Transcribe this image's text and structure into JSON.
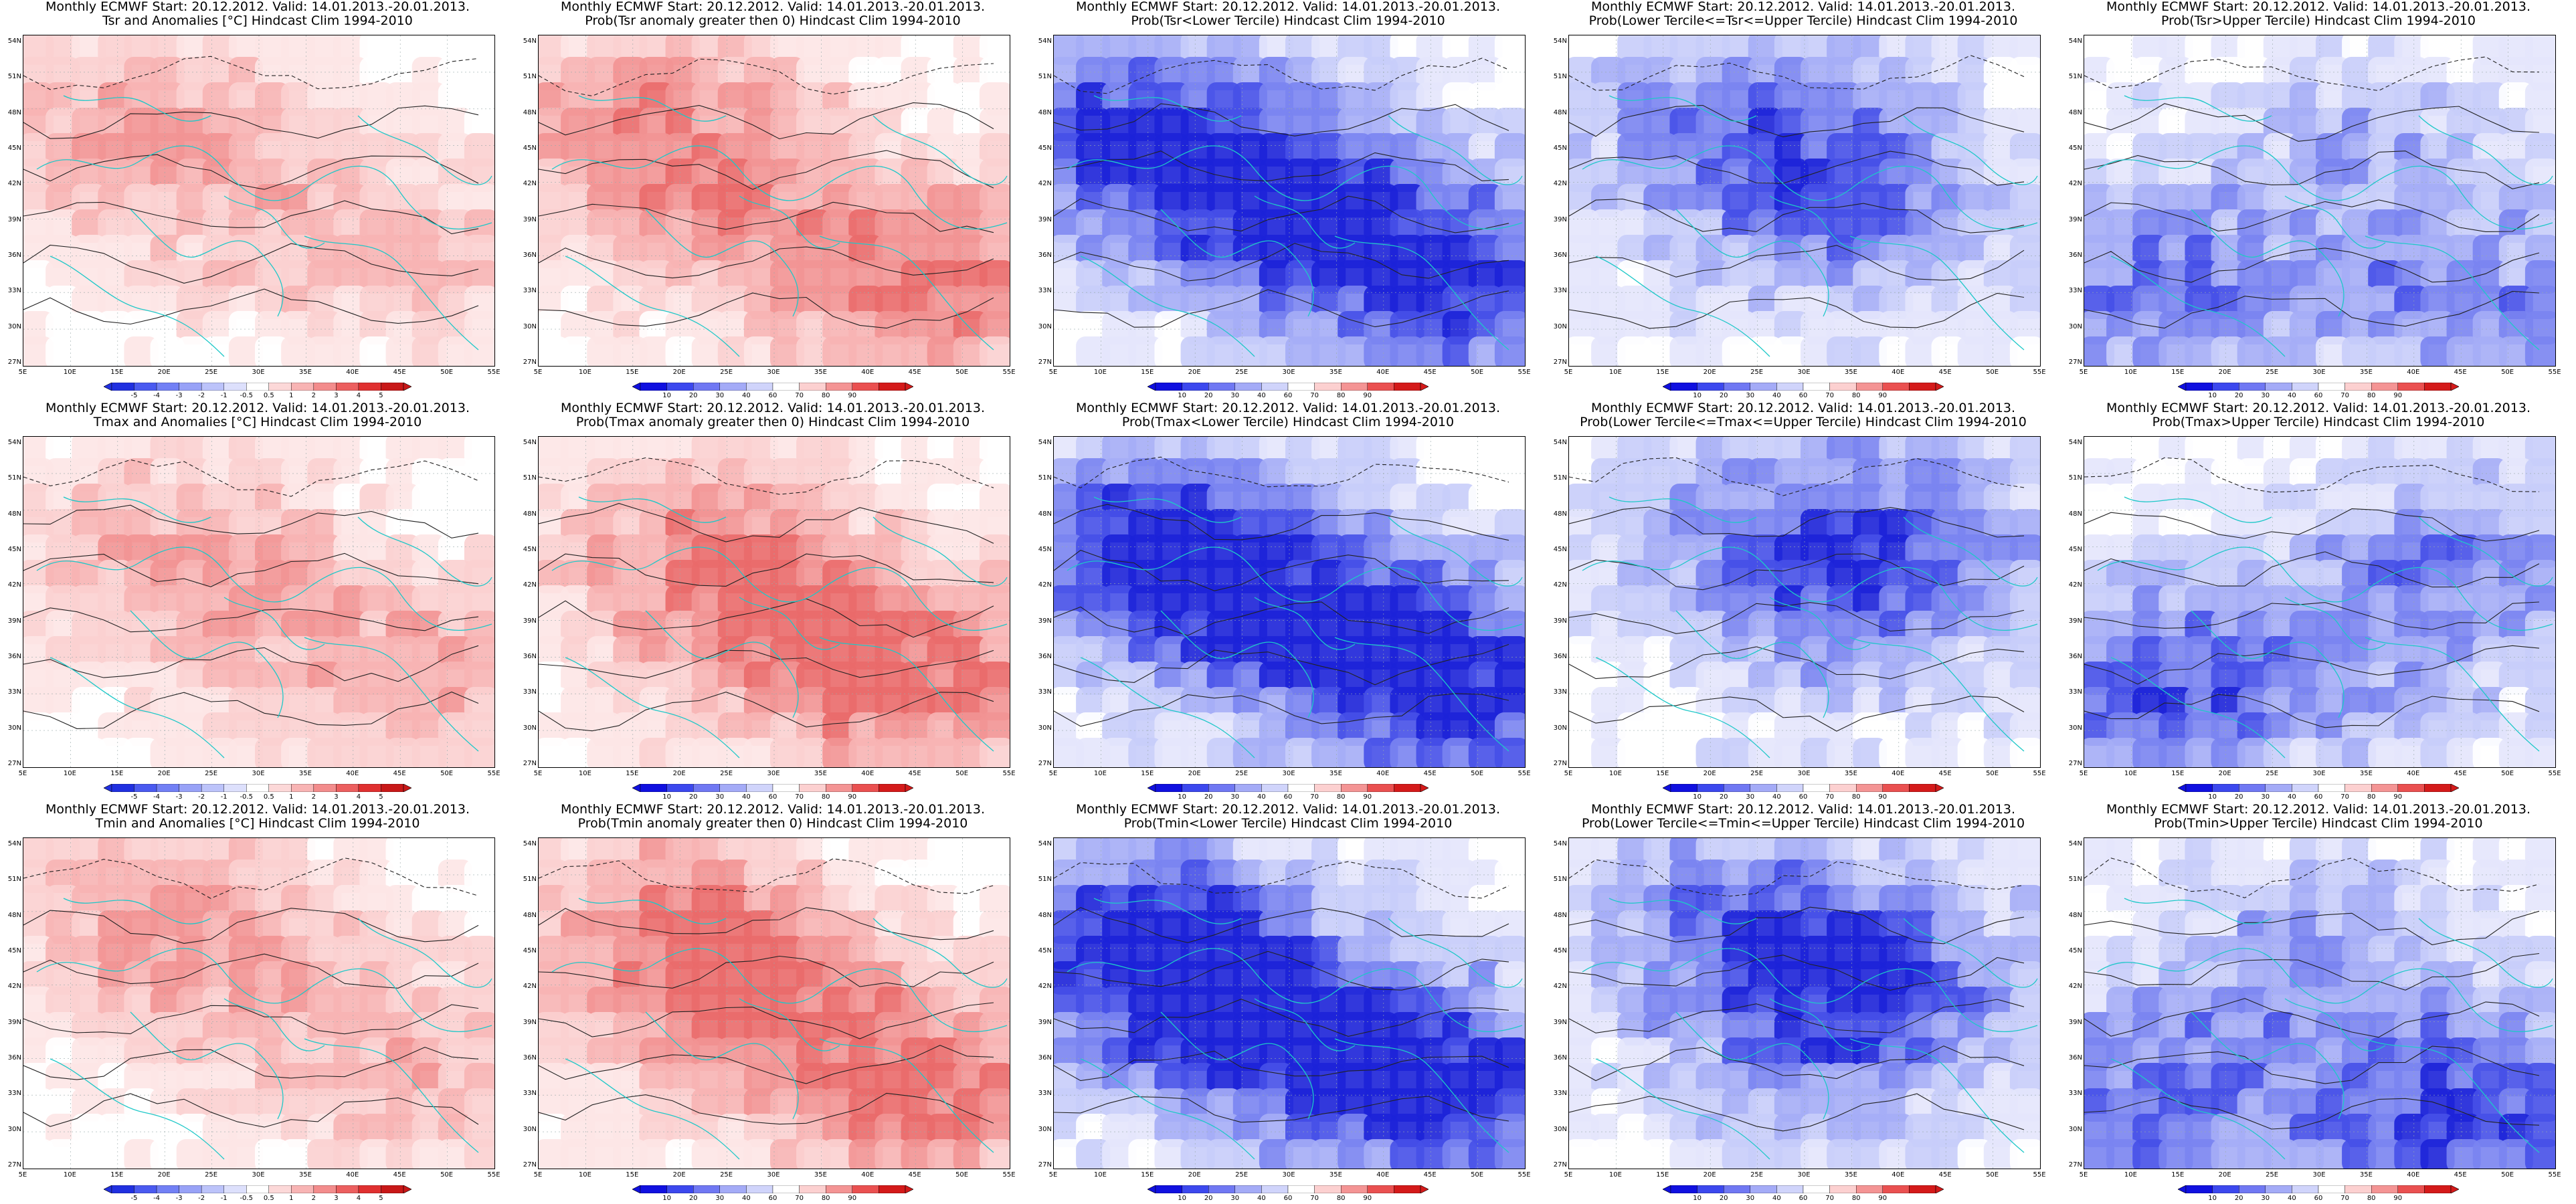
{
  "panels": [
    {
      "title1": "Monthly ECMWF Start: 20.12.2012. Valid: 14.01.2013.-20.01.2013.",
      "title2": "Tsr and Anomalies [°C] Hindcast Clim 1994-2010",
      "kind": "anom",
      "tone": "warm",
      "blobs": [
        [
          0.15,
          0.25,
          0.55
        ],
        [
          0.45,
          0.45,
          0.35
        ],
        [
          0.85,
          0.7,
          0.45
        ]
      ]
    },
    {
      "title1": "Monthly ECMWF Start: 20.12.2012. Valid: 14.01.2013.-20.01.2013.",
      "title2": "Prob(Tsr anomaly greater then 0) Hindcast Clim 1994-2010",
      "kind": "prob",
      "tone": "warm",
      "blobs": [
        [
          0.2,
          0.25,
          0.7
        ],
        [
          0.45,
          0.55,
          0.5
        ],
        [
          0.9,
          0.8,
          0.85
        ]
      ]
    },
    {
      "title1": "Monthly ECMWF Start: 20.12.2012. Valid: 14.01.2013.-20.01.2013.",
      "title2": "Prob(Tsr<Lower Tercile) Hindcast Clim 1994-2010",
      "kind": "prob",
      "tone": "cold",
      "blobs": [
        [
          0.15,
          0.3,
          0.85
        ],
        [
          0.5,
          0.5,
          0.7
        ],
        [
          0.9,
          0.8,
          0.9
        ]
      ]
    },
    {
      "title1": "Monthly ECMWF Start: 20.12.2012. Valid: 14.01.2013.-20.01.2013.",
      "title2": "Prob(Lower Tercile<=Tsr<=Upper Tercile) Hindcast Clim 1994-2010",
      "kind": "prob",
      "tone": "cold",
      "blobs": [
        [
          0.3,
          0.35,
          0.45
        ],
        [
          0.7,
          0.6,
          0.5
        ],
        [
          0.5,
          0.2,
          0.35
        ]
      ]
    },
    {
      "title1": "Monthly ECMWF Start: 20.12.2012. Valid: 14.01.2013.-20.01.2013.",
      "title2": "Prob(Tsr>Upper Tercile) Hindcast Clim 1994-2010",
      "kind": "prob",
      "tone": "cold",
      "blobs": [
        [
          0.1,
          0.8,
          0.7
        ],
        [
          0.85,
          0.85,
          0.6
        ],
        [
          0.6,
          0.3,
          0.4
        ]
      ]
    },
    {
      "title1": "Monthly ECMWF Start: 20.12.2012. Valid: 14.01.2013.-20.01.2013.",
      "title2": "Tmax and Anomalies [°C] Hindcast Clim 1994-2010",
      "kind": "anom",
      "tone": "warm",
      "blobs": [
        [
          0.25,
          0.3,
          0.5
        ],
        [
          0.5,
          0.55,
          0.35
        ],
        [
          0.9,
          0.8,
          0.6
        ]
      ]
    },
    {
      "title1": "Monthly ECMWF Start: 20.12.2012. Valid: 14.01.2013.-20.01.2013.",
      "title2": "Prob(Tmax anomaly greater then 0) Hindcast Clim 1994-2010",
      "kind": "prob",
      "tone": "warm",
      "blobs": [
        [
          0.3,
          0.3,
          0.55
        ],
        [
          0.5,
          0.6,
          0.65
        ],
        [
          0.9,
          0.8,
          0.8
        ]
      ]
    },
    {
      "title1": "Monthly ECMWF Start: 20.12.2012. Valid: 14.01.2013.-20.01.2013.",
      "title2": "Prob(Tmax<Lower Tercile) Hindcast Clim 1994-2010",
      "kind": "prob",
      "tone": "cold",
      "blobs": [
        [
          0.15,
          0.3,
          0.85
        ],
        [
          0.5,
          0.55,
          0.75
        ],
        [
          0.9,
          0.8,
          0.95
        ]
      ]
    },
    {
      "title1": "Monthly ECMWF Start: 20.12.2012. Valid: 14.01.2013.-20.01.2013.",
      "title2": "Prob(Lower Tercile<=Tmax<=Upper Tercile) Hindcast Clim 1994-2010",
      "kind": "prob",
      "tone": "cold",
      "blobs": [
        [
          0.4,
          0.25,
          0.5
        ],
        [
          0.6,
          0.6,
          0.4
        ],
        [
          0.8,
          0.3,
          0.45
        ]
      ]
    },
    {
      "title1": "Monthly ECMWF Start: 20.12.2012. Valid: 14.01.2013.-20.01.2013.",
      "title2": "Prob(Tmax>Upper Tercile) Hindcast Clim 1994-2010",
      "kind": "prob",
      "tone": "cold",
      "blobs": [
        [
          0.1,
          0.8,
          0.8
        ],
        [
          0.85,
          0.35,
          0.5
        ],
        [
          0.6,
          0.7,
          0.35
        ]
      ]
    },
    {
      "title1": "Monthly ECMWF Start: 20.12.2012. Valid: 14.01.2013.-20.01.2013.",
      "title2": "Tmin and Anomalies [°C] Hindcast Clim 1994-2010",
      "kind": "anom",
      "tone": "warm",
      "blobs": [
        [
          0.25,
          0.2,
          0.6
        ],
        [
          0.5,
          0.45,
          0.35
        ],
        [
          0.9,
          0.75,
          0.55
        ]
      ]
    },
    {
      "title1": "Monthly ECMWF Start: 20.12.2012. Valid: 14.01.2013.-20.01.2013.",
      "title2": "Prob(Tmin anomaly greater then 0) Hindcast Clim 1994-2010",
      "kind": "prob",
      "tone": "warm",
      "blobs": [
        [
          0.3,
          0.25,
          0.8
        ],
        [
          0.45,
          0.6,
          0.55
        ],
        [
          0.9,
          0.8,
          0.85
        ]
      ]
    },
    {
      "title1": "Monthly ECMWF Start: 20.12.2012. Valid: 14.01.2013.-20.01.2013.",
      "title2": "Prob(Tmin<Lower Tercile) Hindcast Clim 1994-2010",
      "kind": "prob",
      "tone": "cold",
      "blobs": [
        [
          0.15,
          0.3,
          0.9
        ],
        [
          0.45,
          0.6,
          0.8
        ],
        [
          0.9,
          0.8,
          0.9
        ]
      ]
    },
    {
      "title1": "Monthly ECMWF Start: 20.12.2012. Valid: 14.01.2013.-20.01.2013.",
      "title2": "Prob(Lower Tercile<=Tmin<=Upper Tercile) Hindcast Clim 1994-2010",
      "kind": "prob",
      "tone": "cold",
      "blobs": [
        [
          0.3,
          0.2,
          0.55
        ],
        [
          0.7,
          0.4,
          0.6
        ],
        [
          0.5,
          0.7,
          0.45
        ]
      ]
    },
    {
      "title1": "Monthly ECMWF Start: 20.12.2012. Valid: 14.01.2013.-20.01.2013.",
      "title2": "Prob(Tmin>Upper Tercile) Hindcast Clim 1994-2010",
      "kind": "prob",
      "tone": "cold",
      "blobs": [
        [
          0.1,
          0.85,
          0.75
        ],
        [
          0.85,
          0.9,
          0.9
        ],
        [
          0.5,
          0.3,
          0.45
        ]
      ]
    }
  ],
  "lat_labels": [
    "54N",
    "51N",
    "48N",
    "45N",
    "42N",
    "39N",
    "36N",
    "33N",
    "30N",
    "27N"
  ],
  "lon_labels": [
    "5E",
    "10E",
    "15E",
    "20E",
    "25E",
    "30E",
    "35E",
    "40E",
    "45E",
    "50E",
    "55E"
  ],
  "anom_colorbar": {
    "labels": [
      "-5",
      "-4",
      "-3",
      "-2",
      "-1",
      "-0.5",
      "0.5",
      "1",
      "2",
      "3",
      "4",
      "5"
    ],
    "colors": [
      "#2030e0",
      "#4a5af0",
      "#7280f5",
      "#98a2f7",
      "#bcc3fa",
      "#dde0fc",
      "#ffffff",
      "#fcd8d8",
      "#f8b4b4",
      "#f38c8c",
      "#ec5f5f",
      "#e03030",
      "#c81818"
    ]
  },
  "prob_colorbar": {
    "labels": [
      "10",
      "20",
      "30",
      "40",
      "60",
      "70",
      "80",
      "90"
    ],
    "colors": [
      "#1010e0",
      "#3c48ee",
      "#7078f3",
      "#a4abf7",
      "#d0d4fb",
      "#ffffff",
      "#fcd0d0",
      "#f49494",
      "#ea5050",
      "#d41a1a"
    ]
  }
}
